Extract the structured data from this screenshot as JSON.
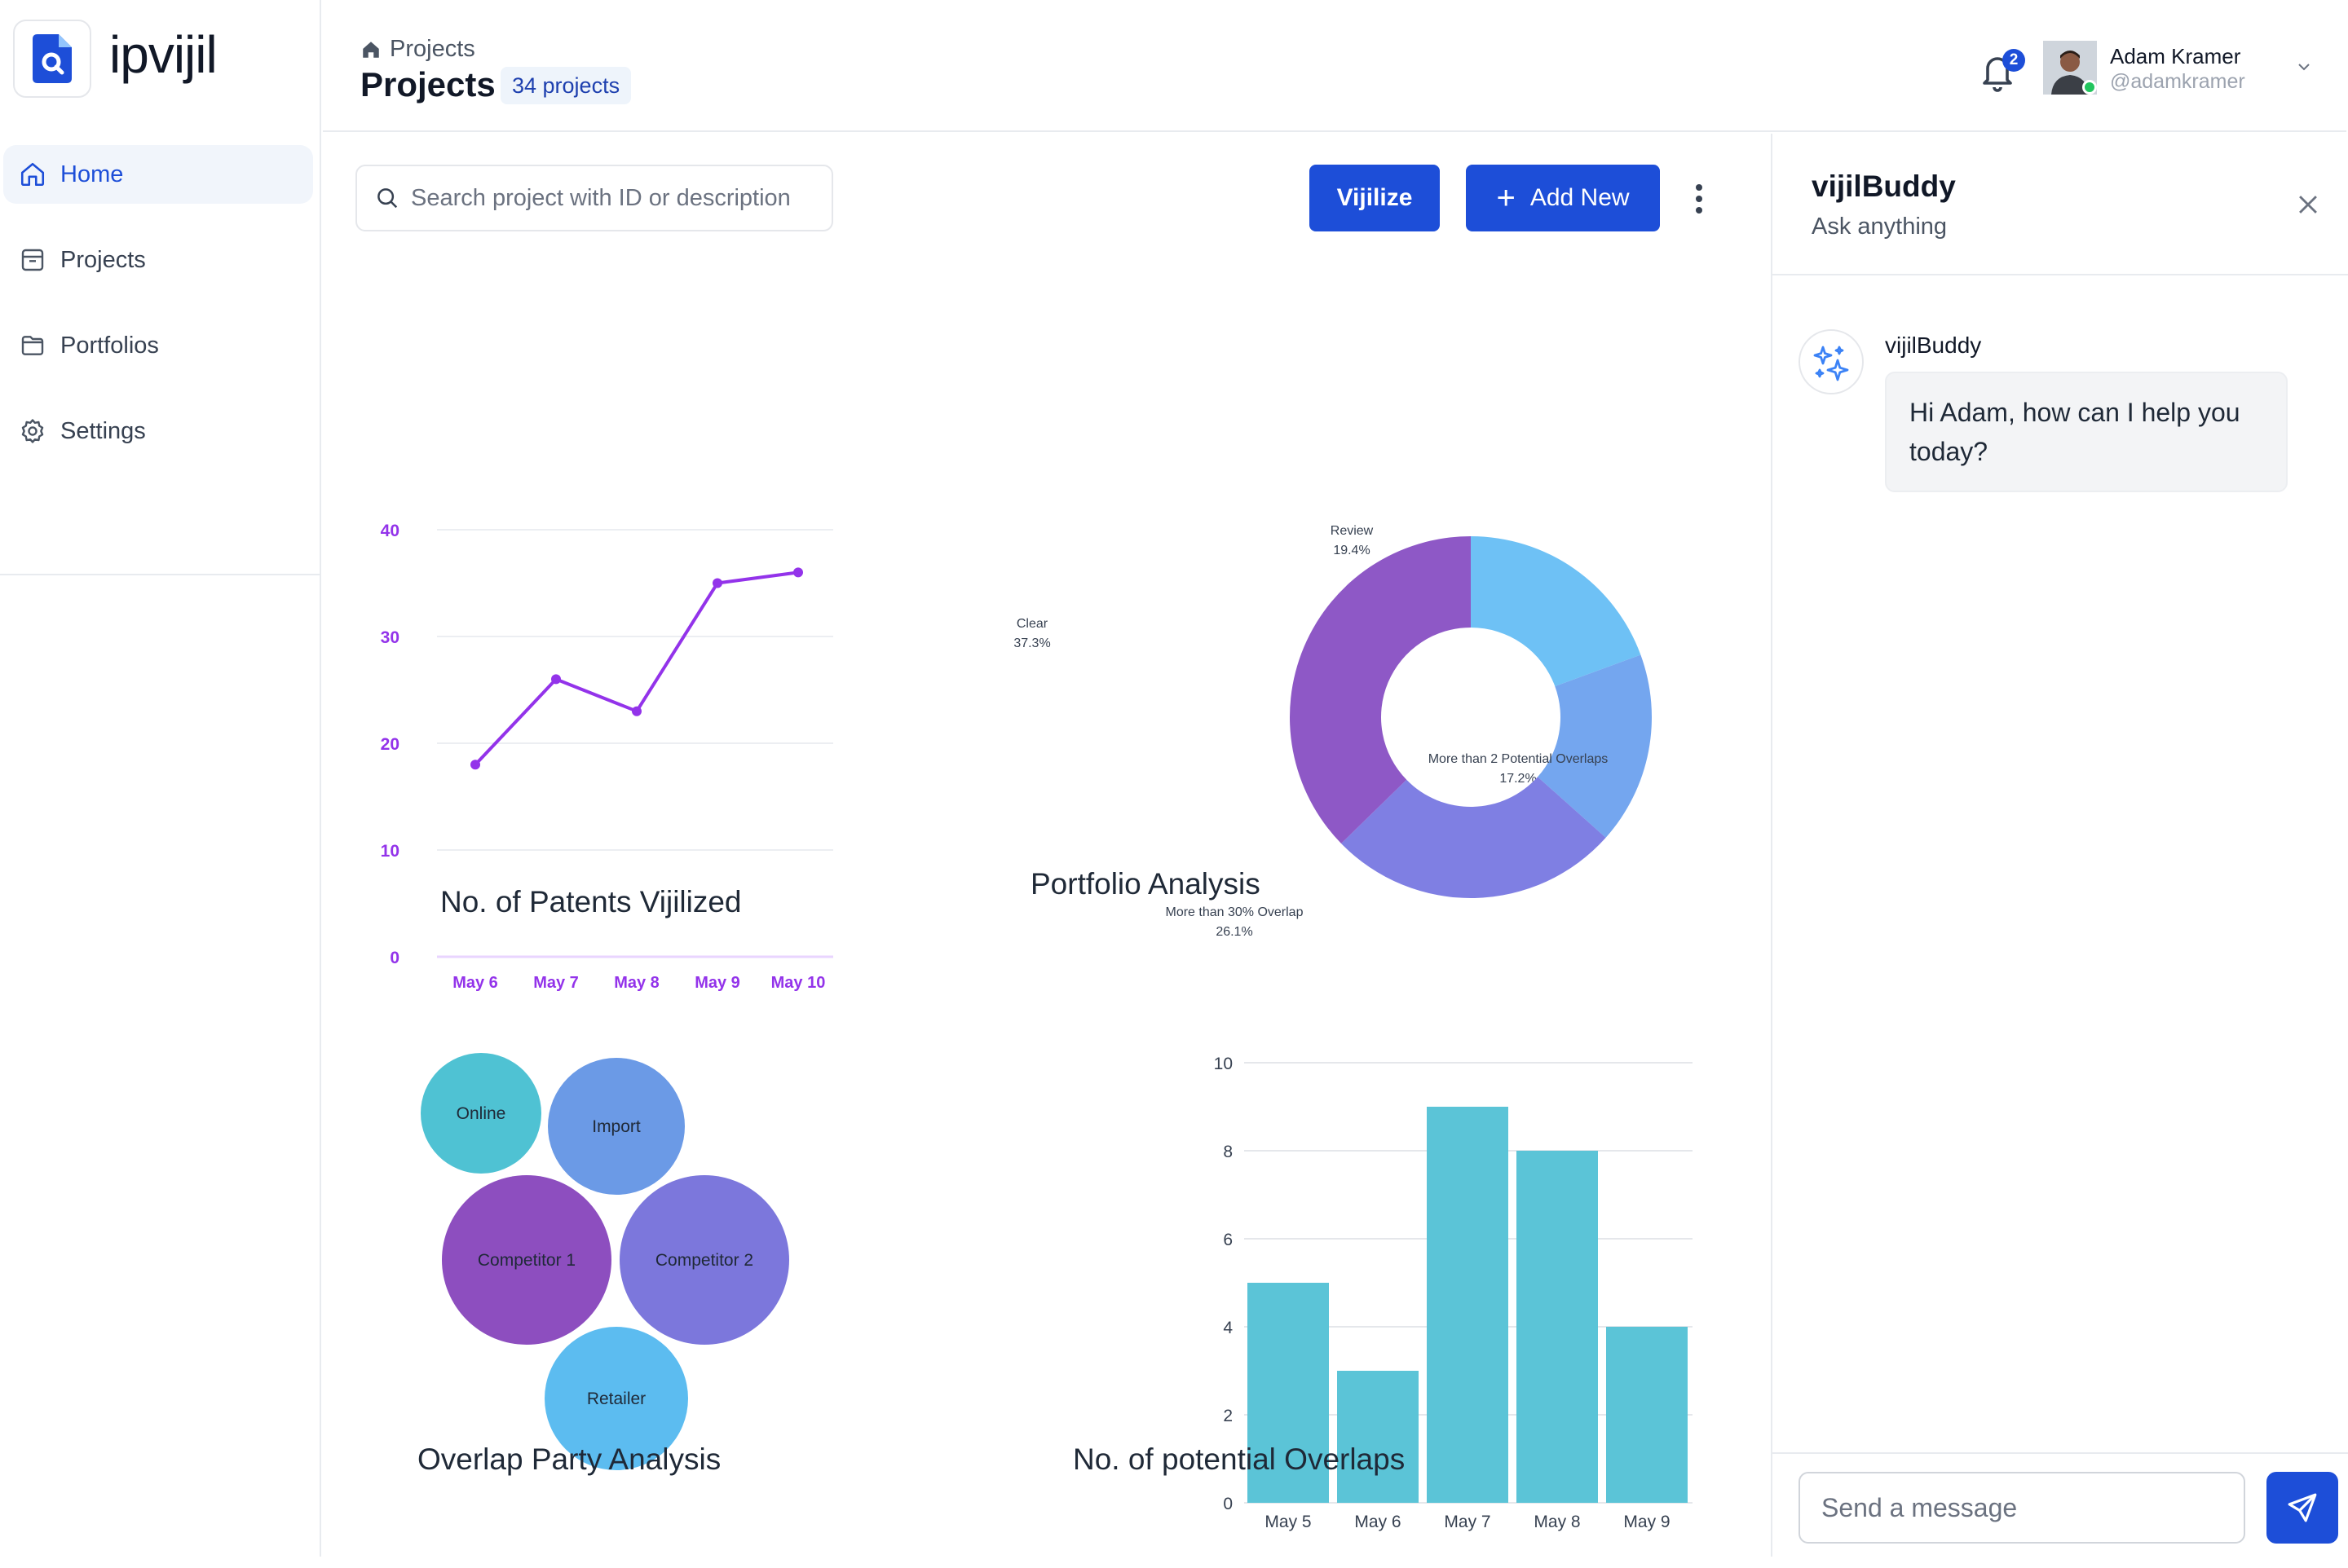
{
  "app": {
    "logo_text": "ipvijil",
    "brand_color": "#1d4ed8"
  },
  "sidebar": {
    "items": [
      {
        "label": "Home",
        "icon": "home-icon",
        "active": true
      },
      {
        "label": "Projects",
        "icon": "archive-icon",
        "active": false
      },
      {
        "label": "Portfolios",
        "icon": "folder-icon",
        "active": false
      },
      {
        "label": "Settings",
        "icon": "gear-icon",
        "active": false
      }
    ]
  },
  "header": {
    "breadcrumb": "Projects",
    "title": "Projects",
    "count_badge": "34 projects",
    "notifications": "2",
    "user": {
      "name": "Adam Kramer",
      "handle": "@adamkramer"
    }
  },
  "toolbar": {
    "search_placeholder": "Search project with ID or description",
    "vijilize_label": "Vijilize",
    "add_new_label": "Add New"
  },
  "chart_data": [
    {
      "type": "line",
      "title": "No. of Patents Vijilized",
      "categories": [
        "May 6",
        "May 7",
        "May 8",
        "May 9",
        "May 10"
      ],
      "x": [
        0,
        1,
        2,
        3,
        4
      ],
      "values": [
        18,
        26,
        23,
        35,
        36
      ],
      "ylim": [
        0,
        40
      ],
      "yticks": [
        "0",
        "10",
        "20",
        "30",
        "40"
      ],
      "color": "#9333ea",
      "grid": true
    },
    {
      "type": "pie",
      "title": "Portfolio Analysis",
      "donut": true,
      "slices": [
        {
          "label": "Review",
          "value": 19.4,
          "pct": "19.4%",
          "color": "#6ec1f5"
        },
        {
          "label": "More than 2 Potential Overlaps",
          "value": 17.2,
          "pct": "17.2%",
          "color": "#74a6ef"
        },
        {
          "label": "More than 30% Overlap",
          "value": 26.1,
          "pct": "26.1%",
          "color": "#7f7fe3"
        },
        {
          "label": "Clear",
          "value": 37.3,
          "pct": "37.3%",
          "color": "#8e58c6"
        }
      ]
    },
    {
      "type": "bubble",
      "title": "Overlap  Party Analysis",
      "bubbles": [
        {
          "label": "Online",
          "color": "#4fc2d3"
        },
        {
          "label": "Import",
          "color": "#6b9ae6"
        },
        {
          "label": "Competitor 1",
          "color": "#8d4ebf"
        },
        {
          "label": "Competitor 2",
          "color": "#7c77dc"
        },
        {
          "label": "Retailer",
          "color": "#5cbcf0"
        }
      ]
    },
    {
      "type": "bar",
      "title": "No. of potential Overlaps",
      "categories": [
        "May 5",
        "May 6",
        "May 7",
        "May 8",
        "May 9"
      ],
      "values": [
        5,
        3,
        9,
        8,
        4
      ],
      "ylim": [
        0,
        10
      ],
      "yticks": [
        "0",
        "2",
        "4",
        "6",
        "8",
        "10"
      ],
      "color": "#5bc4d7",
      "grid": true
    }
  ],
  "chat": {
    "title": "vijilBuddy",
    "subtitle": "Ask anything",
    "bot_name": "vijilBuddy",
    "message": "Hi Adam, how can I help you today?",
    "input_placeholder": "Send a message"
  }
}
